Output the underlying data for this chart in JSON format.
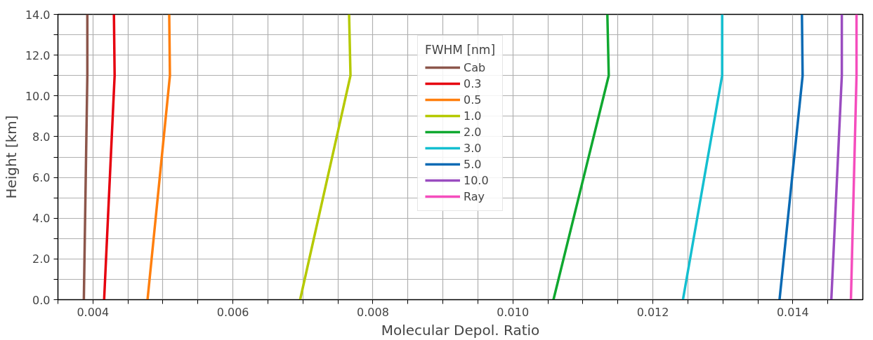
{
  "chart_data": {
    "type": "line",
    "xlabel": "Molecular Depol. Ratio",
    "ylabel": "Height [km]",
    "legend_title": "FWHM [nm]",
    "legend": "top",
    "grid": true,
    "line_style": "solid",
    "xlim": [
      0.0035,
      0.015
    ],
    "ylim": [
      0,
      14
    ],
    "xticks": [
      {
        "value": 0.0035,
        "label": null
      },
      {
        "value": 0.004,
        "label": "0.004"
      },
      {
        "value": 0.0045,
        "label": null
      },
      {
        "value": 0.005,
        "label": null
      },
      {
        "value": 0.0055,
        "label": null
      },
      {
        "value": 0.006,
        "label": "0.006"
      },
      {
        "value": 0.0065,
        "label": null
      },
      {
        "value": 0.007,
        "label": null
      },
      {
        "value": 0.0075,
        "label": null
      },
      {
        "value": 0.008,
        "label": "0.008"
      },
      {
        "value": 0.0085,
        "label": null
      },
      {
        "value": 0.009,
        "label": null
      },
      {
        "value": 0.0095,
        "label": null
      },
      {
        "value": 0.01,
        "label": "0.010"
      },
      {
        "value": 0.0105,
        "label": null
      },
      {
        "value": 0.011,
        "label": null
      },
      {
        "value": 0.0115,
        "label": null
      },
      {
        "value": 0.012,
        "label": "0.012"
      },
      {
        "value": 0.0125,
        "label": null
      },
      {
        "value": 0.013,
        "label": null
      },
      {
        "value": 0.0135,
        "label": null
      },
      {
        "value": 0.014,
        "label": "0.014"
      },
      {
        "value": 0.0145,
        "label": null
      }
    ],
    "yticks": [
      {
        "value": 0,
        "label": "0.0"
      },
      {
        "value": 1,
        "label": null
      },
      {
        "value": 2,
        "label": "2.0"
      },
      {
        "value": 3,
        "label": null
      },
      {
        "value": 4,
        "label": "4.0"
      },
      {
        "value": 5,
        "label": null
      },
      {
        "value": 6,
        "label": "6.0"
      },
      {
        "value": 7,
        "label": null
      },
      {
        "value": 8,
        "label": "8.0"
      },
      {
        "value": 9,
        "label": null
      },
      {
        "value": 10,
        "label": "10.0"
      },
      {
        "value": 11,
        "label": null
      },
      {
        "value": 12,
        "label": "12.0"
      },
      {
        "value": 13,
        "label": null
      },
      {
        "value": 14,
        "label": "14.0"
      }
    ],
    "series": [
      {
        "name": "Cab",
        "color": "#8c564b",
        "x": [
          0.00387,
          0.00392,
          0.00392
        ],
        "values": [
          0,
          11,
          14
        ]
      },
      {
        "name": "0.3",
        "color": "#e6000f",
        "x": [
          0.00416,
          0.00431,
          0.0043
        ],
        "values": [
          0,
          11,
          14
        ]
      },
      {
        "name": "0.5",
        "color": "#ff7f0e",
        "x": [
          0.00478,
          0.0051,
          0.00509
        ],
        "values": [
          0,
          11,
          14
        ]
      },
      {
        "name": "1.0",
        "color": "#b5c900",
        "x": [
          0.00696,
          0.00768,
          0.00766
        ],
        "values": [
          0,
          11,
          14
        ]
      },
      {
        "name": "2.0",
        "color": "#10a830",
        "x": [
          0.01058,
          0.01137,
          0.01135
        ],
        "values": [
          0,
          11,
          14
        ]
      },
      {
        "name": "3.0",
        "color": "#14bfd0",
        "x": [
          0.01243,
          0.01299,
          0.01299
        ],
        "values": [
          0,
          11,
          14
        ]
      },
      {
        "name": "5.0",
        "color": "#0a6ab4",
        "x": [
          0.01381,
          0.01414,
          0.01413
        ],
        "values": [
          0,
          11,
          14
        ]
      },
      {
        "name": "10.0",
        "color": "#9a4cc0",
        "x": [
          0.01455,
          0.0147,
          0.0147
        ],
        "values": [
          0,
          11,
          14
        ]
      },
      {
        "name": "Ray",
        "color": "#f54dbd",
        "x": [
          0.01483,
          0.01491,
          0.01491
        ],
        "values": [
          0,
          11,
          14
        ]
      }
    ]
  }
}
